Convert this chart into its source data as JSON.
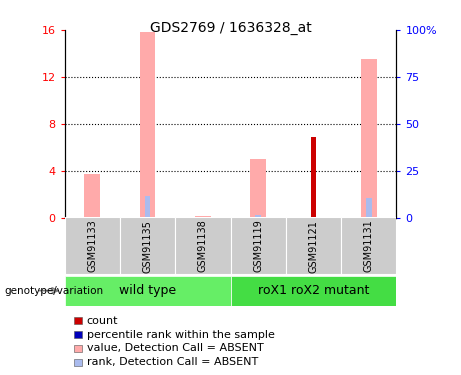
{
  "title": "GDS2769 / 1636328_at",
  "samples": [
    "GSM91133",
    "GSM91135",
    "GSM91138",
    "GSM91119",
    "GSM91121",
    "GSM91131"
  ],
  "value_absent": [
    3.7,
    15.8,
    0.1,
    5.0,
    0.0,
    13.5
  ],
  "rank_absent": [
    0.3,
    11.25,
    0.3125,
    1.25,
    0.0,
    10.625
  ],
  "count": [
    0.0,
    0.0,
    0.0,
    0.0,
    6.9,
    0.0
  ],
  "percentile_rank": [
    0.0,
    0.0,
    0.0,
    0.0,
    0.5,
    0.0
  ],
  "ylim_left": [
    0,
    16
  ],
  "ylim_right": [
    0,
    100
  ],
  "yticks_left": [
    0,
    4,
    8,
    12,
    16
  ],
  "ytick_labels_left": [
    "0",
    "4",
    "8",
    "12",
    "16"
  ],
  "yticks_right": [
    0,
    25,
    50,
    75,
    100
  ],
  "ytick_labels_right": [
    "0",
    "25",
    "50",
    "75",
    "100%"
  ],
  "wt_color": "#66ee66",
  "mut_color": "#44dd44",
  "gray_color": "#cccccc",
  "color_count": "#cc0000",
  "color_percentile": "#0000bb",
  "color_value_absent": "#ffaaaa",
  "color_rank_absent": "#aabbee",
  "title_fontsize": 10,
  "tick_fontsize": 8,
  "legend_fontsize": 8,
  "group_label_fontsize": 9,
  "sample_fontsize": 7,
  "genotype_label": "genotype/variation"
}
